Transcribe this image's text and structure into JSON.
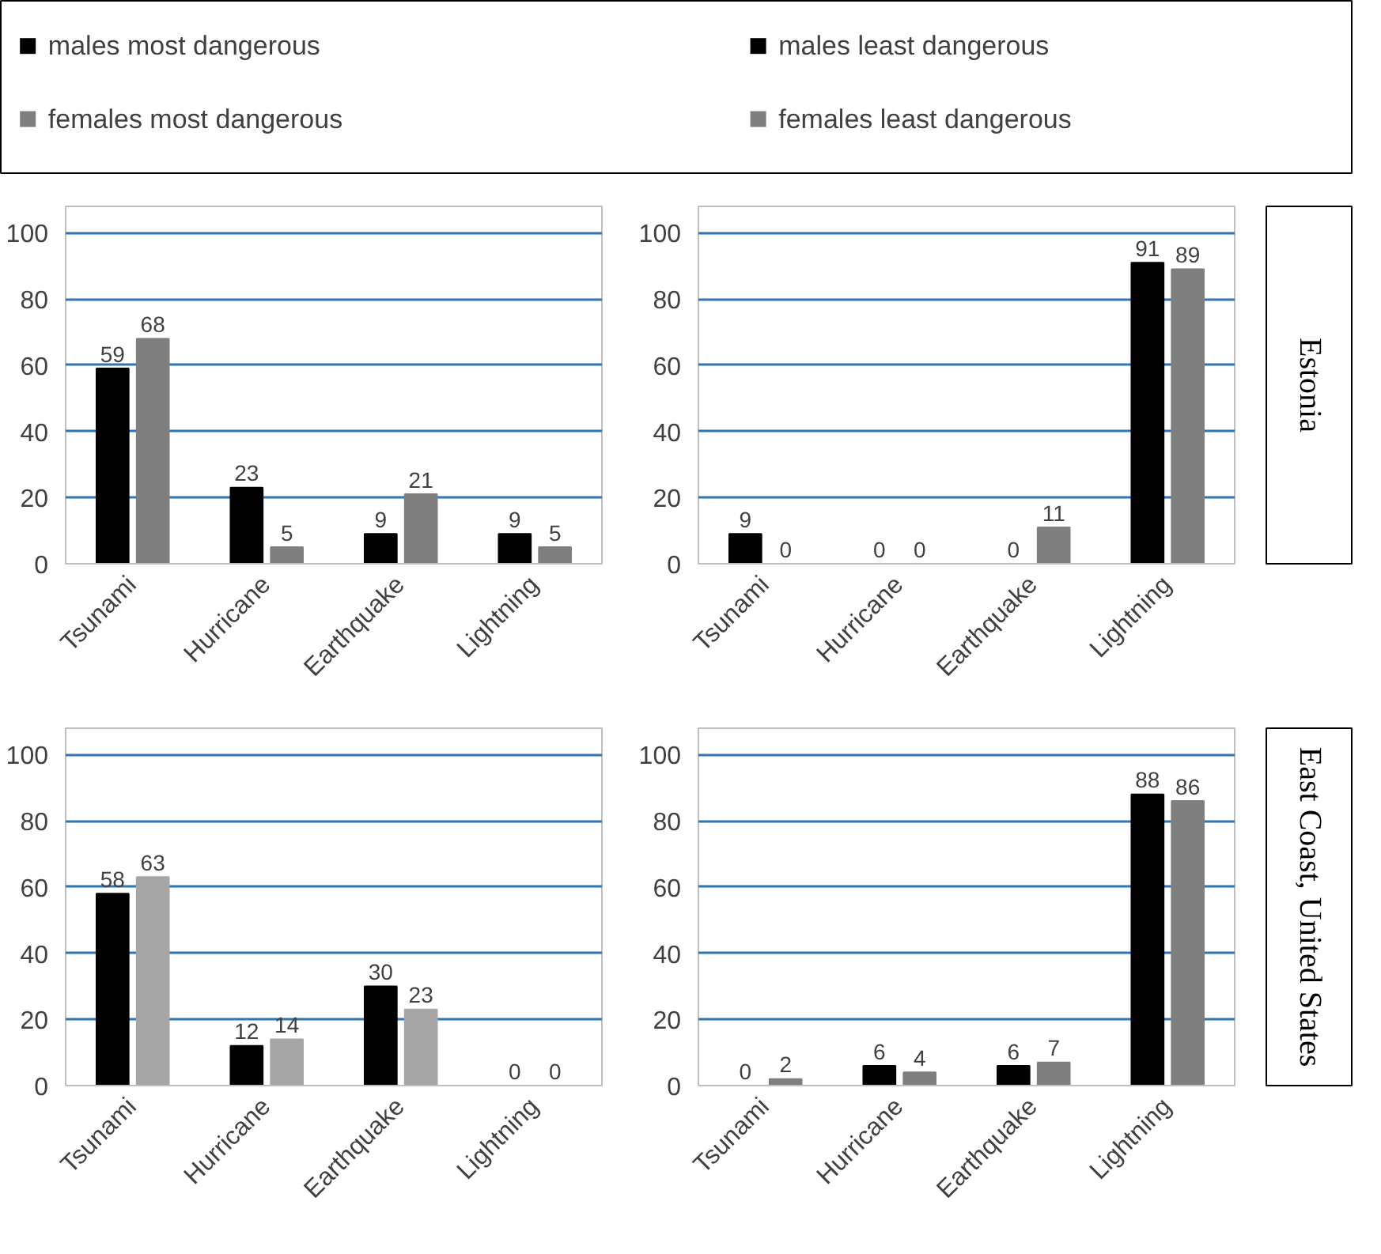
{
  "chart_data": [
    {
      "type": "bar",
      "categories": [
        "Tsunami",
        "Hurricane",
        "Earthquake",
        "Lightning"
      ],
      "series": [
        {
          "name": "males most dangerous",
          "color": "#000000",
          "values": [
            59,
            23,
            9,
            9
          ]
        },
        {
          "name": "females most dangerous",
          "color": "#7f7f7f",
          "values": [
            68,
            5,
            21,
            5
          ]
        }
      ],
      "ylim": [
        0,
        108
      ],
      "yticks": [
        0,
        20,
        40,
        60,
        80,
        100
      ],
      "grid": "y",
      "data_labels": true,
      "legend": "top"
    },
    {
      "type": "bar",
      "categories": [
        "Tsunami",
        "Hurricane",
        "Earthquake",
        "Lightning"
      ],
      "series": [
        {
          "name": "males least dangerous",
          "color": "#000000",
          "values": [
            9,
            0,
            0,
            91
          ]
        },
        {
          "name": "females least dangerous",
          "color": "#7f7f7f",
          "values": [
            0,
            0,
            11,
            89
          ]
        }
      ],
      "ylim": [
        0,
        108
      ],
      "yticks": [
        0,
        20,
        40,
        60,
        80,
        100
      ],
      "grid": "y",
      "data_labels": true,
      "legend": "top",
      "annotations": [
        "Estonia"
      ]
    },
    {
      "type": "bar",
      "categories": [
        "Tsunami",
        "Hurricane",
        "Earthquake",
        "Lightning"
      ],
      "series": [
        {
          "color": "#000000",
          "values": [
            58,
            12,
            30,
            0
          ]
        },
        {
          "color": "#a6a6a6",
          "values": [
            63,
            14,
            23,
            0
          ]
        }
      ],
      "ylim": [
        0,
        108
      ],
      "yticks": [
        0,
        20,
        40,
        60,
        80,
        100
      ],
      "grid": "y",
      "data_labels": true
    },
    {
      "type": "bar",
      "categories": [
        "Tsunami",
        "Hurricane",
        "Earthquake",
        "Lightning"
      ],
      "series": [
        {
          "color": "#000000",
          "values": [
            0,
            6,
            6,
            88
          ]
        },
        {
          "color": "#7f7f7f",
          "values": [
            2,
            4,
            7,
            86
          ]
        }
      ],
      "ylim": [
        0,
        108
      ],
      "yticks": [
        0,
        20,
        40,
        60,
        80,
        100
      ],
      "grid": "y",
      "data_labels": true,
      "annotations": [
        "East Coast, United States"
      ]
    }
  ]
}
